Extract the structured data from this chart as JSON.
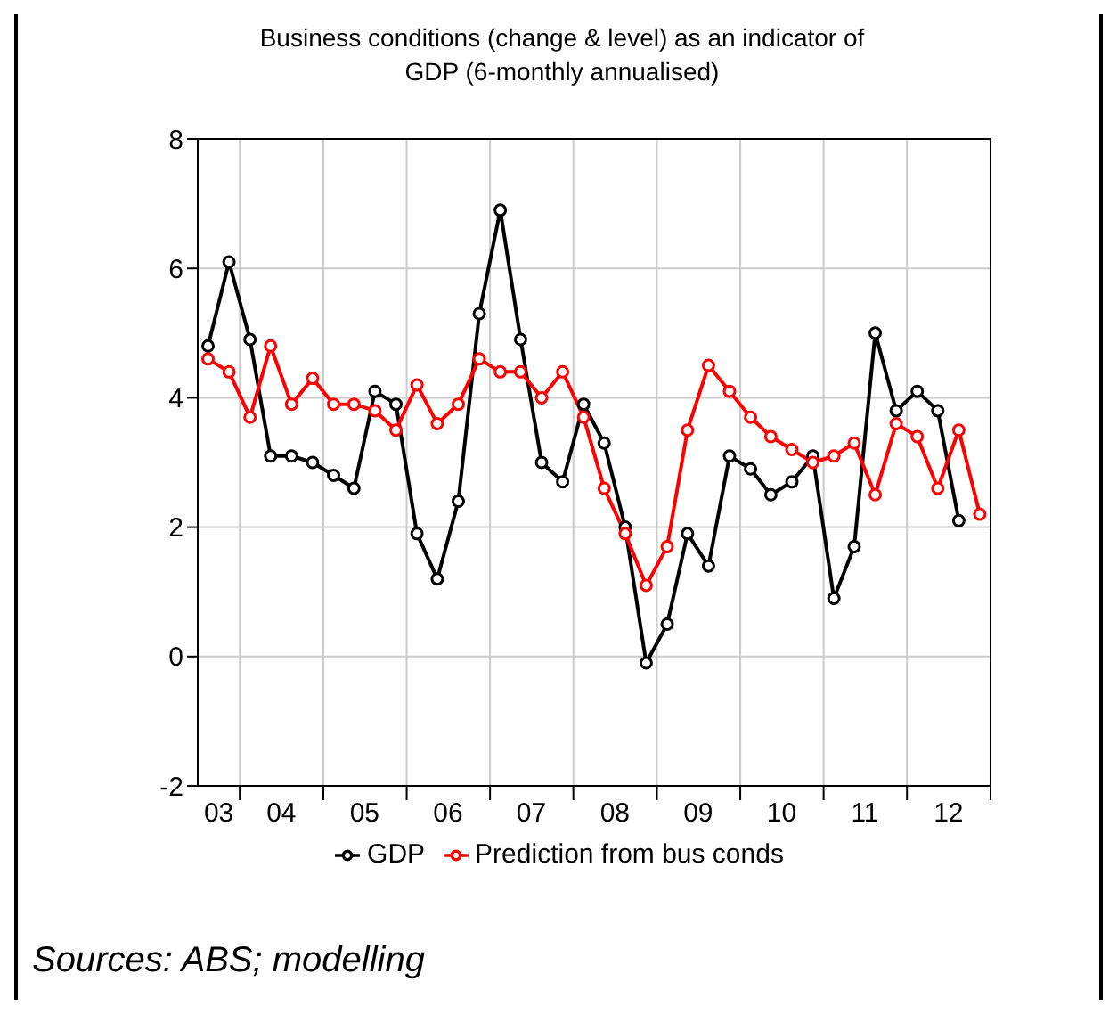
{
  "chart_data": {
    "type": "line",
    "title": "Business conditions (change & level) as an indicator of\nGDP (6-monthly annualised)",
    "x": [
      "2003-08-15",
      "2003-11-15",
      "2004-02-15",
      "2004-05-15",
      "2004-08-15",
      "2004-11-15",
      "2005-02-15",
      "2005-05-15",
      "2005-08-15",
      "2005-11-15",
      "2006-02-15",
      "2006-05-15",
      "2006-08-15",
      "2006-11-15",
      "2007-02-15",
      "2007-05-15",
      "2007-08-15",
      "2007-11-15",
      "2008-02-15",
      "2008-05-15",
      "2008-08-15",
      "2008-11-15",
      "2009-02-15",
      "2009-05-15",
      "2009-08-15",
      "2009-11-15",
      "2010-02-15",
      "2010-05-15",
      "2010-08-15",
      "2010-11-15",
      "2011-02-15",
      "2011-05-15",
      "2011-08-15",
      "2011-11-15",
      "2012-02-15",
      "2012-05-15",
      "2012-08-15",
      "2012-11-15"
    ],
    "series": [
      {
        "name": "GDP",
        "color": "#000000",
        "values": [
          4.8,
          6.1,
          4.9,
          3.1,
          3.1,
          3.0,
          2.8,
          2.6,
          4.1,
          3.9,
          1.9,
          1.2,
          2.4,
          5.3,
          6.9,
          4.9,
          3.0,
          2.7,
          3.9,
          3.3,
          2.0,
          -0.1,
          0.5,
          1.9,
          1.4,
          3.1,
          2.9,
          2.5,
          2.7,
          3.1,
          0.9,
          1.7,
          5.0,
          3.8,
          4.1,
          3.8,
          2.1,
          null
        ]
      },
      {
        "name": "Prediction from bus conds",
        "color": "#ff0000",
        "values": [
          4.6,
          4.4,
          3.7,
          4.8,
          3.9,
          4.3,
          3.9,
          3.9,
          3.8,
          3.5,
          4.2,
          3.6,
          3.9,
          4.6,
          4.4,
          4.4,
          4.0,
          4.4,
          3.7,
          2.6,
          1.9,
          1.1,
          1.7,
          3.5,
          4.5,
          4.1,
          3.7,
          3.4,
          3.2,
          3.0,
          3.1,
          3.3,
          2.5,
          3.6,
          3.4,
          2.6,
          3.5,
          2.2
        ]
      }
    ],
    "xlim": [
      "2003-07-01",
      "2013-01-01"
    ],
    "xticks": [
      {
        "value": "2004-01-01",
        "label": null
      },
      {
        "value": "2005-01-01",
        "label": null
      },
      {
        "value": "2006-01-01",
        "label": null
      },
      {
        "value": "2007-01-01",
        "label": null
      },
      {
        "value": "2008-01-01",
        "label": null
      },
      {
        "value": "2009-01-01",
        "label": null
      },
      {
        "value": "2010-01-01",
        "label": null
      },
      {
        "value": "2011-01-01",
        "label": null
      },
      {
        "value": "2012-01-01",
        "label": null
      },
      {
        "value": "2013-01-01",
        "label": null
      },
      {
        "value": "2003-10-01",
        "label": "03"
      },
      {
        "value": "2004-07-01",
        "label": "04"
      },
      {
        "value": "2005-07-01",
        "label": "05"
      },
      {
        "value": "2006-07-01",
        "label": "06"
      },
      {
        "value": "2007-07-01",
        "label": "07"
      },
      {
        "value": "2008-07-01",
        "label": "08"
      },
      {
        "value": "2009-07-01",
        "label": "09"
      },
      {
        "value": "2010-07-01",
        "label": "10"
      },
      {
        "value": "2011-07-01",
        "label": "11"
      },
      {
        "value": "2012-07-01",
        "label": "12"
      }
    ],
    "ylim": [
      -2,
      8
    ],
    "yticks": [
      -2,
      0,
      2,
      4,
      6,
      8
    ],
    "grid": true,
    "legend": "bottom",
    "marker": "circle",
    "line_style": "solid",
    "annotations": [
      "Sources: ABS; modelling"
    ]
  }
}
